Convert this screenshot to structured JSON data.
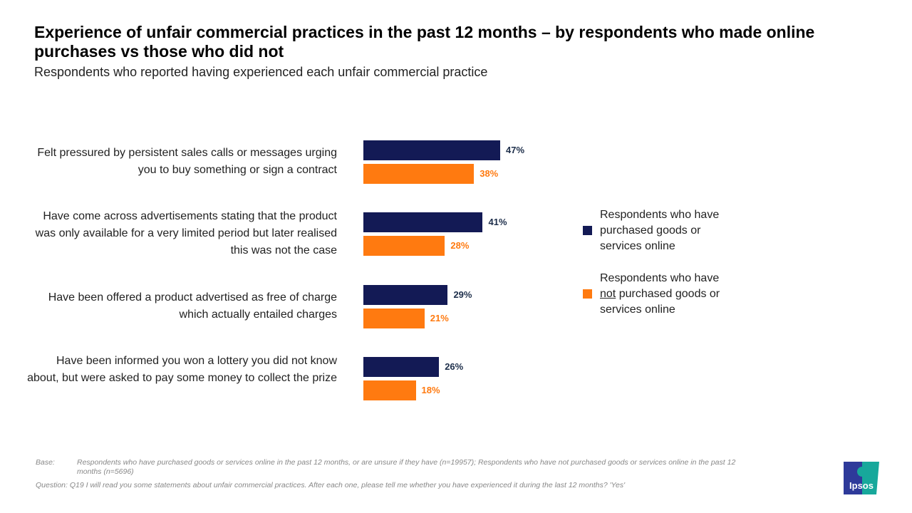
{
  "title": "Experience of unfair commercial practices in the past 12 months – by respondents who made online purchases vs those who did not",
  "subtitle": "Respondents who reported having experienced each unfair commercial practice",
  "chart_data": {
    "type": "bar",
    "orientation": "horizontal",
    "categories": [
      "Felt pressured by persistent sales calls or messages urging you to buy something or sign a contract",
      "Have come across advertisements stating that the product was only available for a very limited period but later realised this was not the case",
      "Have been offered a product advertised as free of charge which actually entailed charges",
      "Have been informed you won a lottery you did not know about, but were asked to pay some money to collect the prize"
    ],
    "series": [
      {
        "name": "Respondents who have purchased goods or services online",
        "values": [
          47,
          41,
          29,
          26
        ],
        "color": "#131a55"
      },
      {
        "name": "Respondents who have not purchased goods or services online",
        "values": [
          38,
          28,
          21,
          18
        ],
        "color": "#ff7a10"
      }
    ],
    "value_suffix": "%",
    "legend_placement": "right",
    "grid": false
  },
  "legend": {
    "s0": "Respondents who have purchased goods or services online",
    "s1_pre": "Respondents who have",
    "s1_u": "not",
    "s1_post": "purchased goods or services online"
  },
  "footnote": {
    "base_label": "Base:",
    "base_text": "Respondents who have purchased goods or services online in the past 12 months, or are unsure if they have (n=19957); Respondents who have not purchased goods or services online in the past 12 months (n=5696)",
    "question": "Question: Q19 I will read you some statements about unfair commercial practices. After each one, please tell me whether you have experienced it during the last 12 months? 'Yes'"
  },
  "logo": "Ipsos"
}
